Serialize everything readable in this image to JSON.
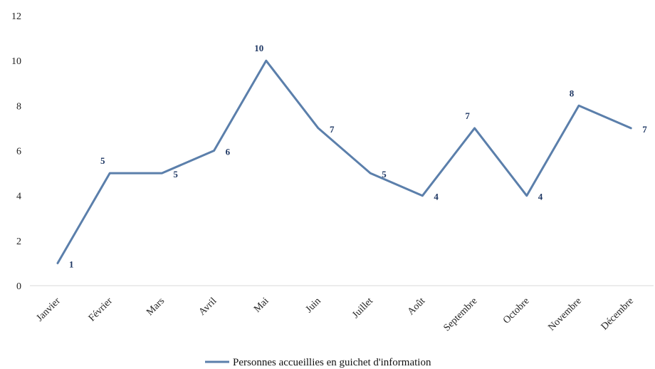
{
  "chart_data": {
    "type": "line",
    "categories": [
      "Janvier",
      "Février",
      "Mars",
      "Avril",
      "Mai",
      "Juin",
      "Juillet",
      "Août",
      "Septembre",
      "Octobre",
      "Novembre",
      "Décembre"
    ],
    "series": [
      {
        "name": "Personnes accueillies en guichet d'information",
        "values": [
          1,
          5,
          5,
          6,
          10,
          7,
          5,
          4,
          7,
          4,
          8,
          7
        ],
        "color": "#5b7fab"
      }
    ],
    "ylim": [
      0,
      12
    ],
    "yticks": [
      "0",
      "2",
      "4",
      "6",
      "8",
      "10",
      "12"
    ],
    "data_labels": [
      "1",
      "5",
      "5",
      "6",
      "10",
      "7",
      "5",
      "4",
      "7",
      "4",
      "8",
      "7"
    ],
    "legend_position": "bottom-center",
    "grid": false
  }
}
